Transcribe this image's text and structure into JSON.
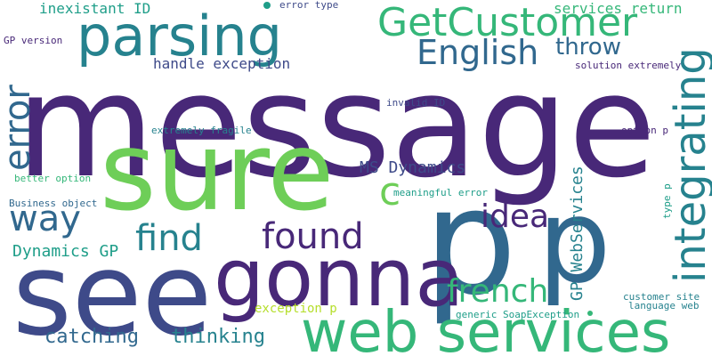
{
  "palette": {
    "purple_dark": "#482878",
    "purple": "#3e4a89",
    "blue": "#31688e",
    "teal": "#26828e",
    "teal_green": "#1f9e89",
    "green": "#35b779",
    "light_green": "#6ece58",
    "yellow_green": "#b5de2b"
  },
  "words": {
    "message": "message",
    "sure": "sure",
    "p_big": "p",
    "p_mid": "p",
    "see": "see",
    "gonna": "gonna",
    "web_services": "web services",
    "parsing": "parsing",
    "getcustomer": "GetCustomer",
    "integrating": "integrating",
    "error": "error",
    "english": "English",
    "find": "find",
    "found": "found",
    "way": "way",
    "idea": "idea",
    "french": "french",
    "c": "c",
    "throw": "throw",
    "thinking": "thinking",
    "catching": "catching",
    "gp_webservices": "GP WebServices",
    "ms_dynamics": "MS Dynamics",
    "dynamics_gp": "Dynamics GP",
    "handle_exception": "handle exception",
    "inexistant_id": "inexistant ID",
    "services_return": "services return",
    "exception_p": "exception p",
    "error_type": "error type",
    "gp_version": "GP version",
    "solution_extremely": "solution extremely",
    "invalid_id": "invalid ID",
    "extremely_fragile": "extremely fragile",
    "option_p": "option p",
    "better_option": "better option",
    "business_object": "Business object",
    "meaningful_error": "meaningful error",
    "type_p": "type p",
    "customer_site": "customer site",
    "language_web": "language web",
    "generic_soapexception": "generic SoapException"
  }
}
